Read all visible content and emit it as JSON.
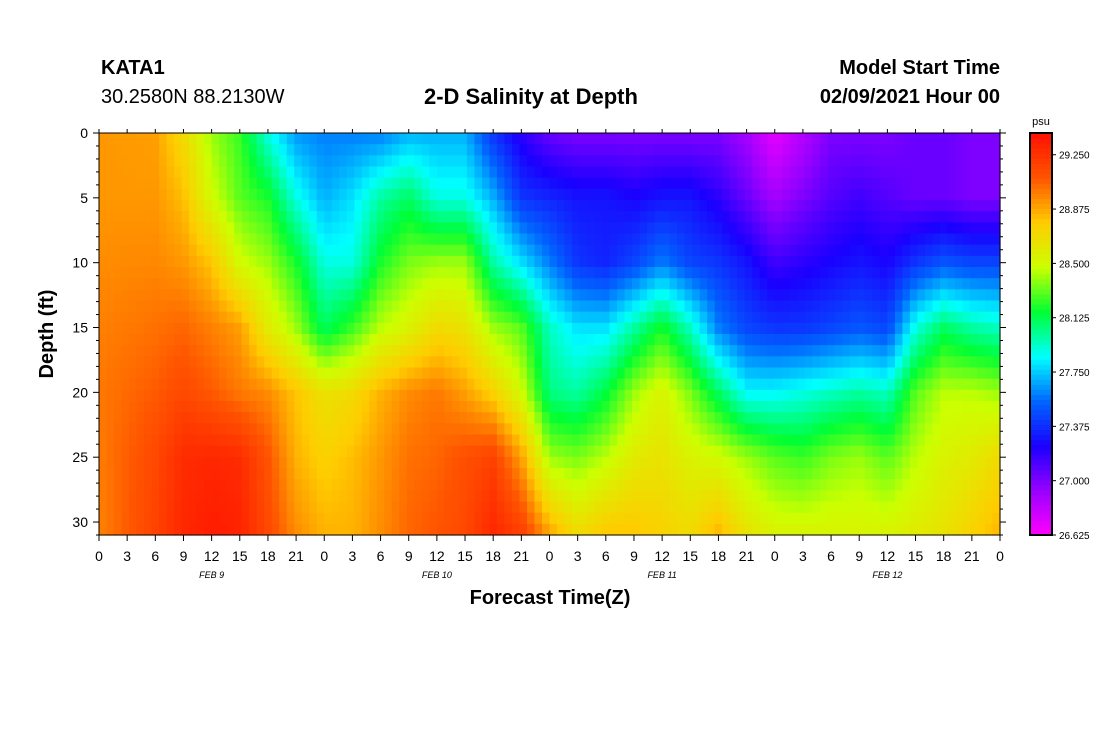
{
  "header": {
    "station_id": "KATA1",
    "location": "30.2580N 88.2130W",
    "title": "2-D Salinity at Depth",
    "start_label": "Model Start Time",
    "start_value": "02/09/2021 Hour 00"
  },
  "chart_data": {
    "type": "heatmap",
    "title": "2-D Salinity at Depth",
    "xlabel": "Forecast Time(Z)",
    "ylabel": "Depth (ft)",
    "x_hours": [
      0,
      3,
      6,
      9,
      12,
      15,
      18,
      21,
      24,
      27,
      30,
      33,
      36,
      39,
      42,
      45,
      48,
      51,
      54,
      57,
      60,
      63,
      66,
      69,
      72,
      75,
      78,
      81,
      84,
      87,
      90,
      93,
      96
    ],
    "x_tick_labels": [
      "0",
      "3",
      "6",
      "9",
      "12",
      "15",
      "18",
      "21",
      "0",
      "3",
      "6",
      "9",
      "12",
      "15",
      "18",
      "21",
      "0",
      "3",
      "6",
      "9",
      "12",
      "15",
      "18",
      "21",
      "0",
      "3",
      "6",
      "9",
      "12",
      "15",
      "18",
      "21",
      "0"
    ],
    "day_labels": [
      {
        "label": "FEB 9",
        "hour": 12
      },
      {
        "label": "FEB 10",
        "hour": 36
      },
      {
        "label": "FEB 11",
        "hour": 60
      },
      {
        "label": "FEB 12",
        "hour": 84
      }
    ],
    "xlim": [
      0,
      96
    ],
    "ylim": [
      0,
      31
    ],
    "y_ticks": [
      0,
      5,
      10,
      15,
      20,
      25,
      30
    ],
    "y_inverted": true,
    "colorbar": {
      "unit": "psu",
      "min": 26.625,
      "max": 29.4,
      "tick_values": [
        29.25,
        28.875,
        28.5,
        28.125,
        27.75,
        27.375,
        27.0,
        26.625
      ],
      "tick_labels": [
        "29.250",
        "28.875",
        "28.500",
        "28.125",
        "27.750",
        "27.375",
        "27.000",
        "26.625"
      ],
      "colors": [
        "#ff00ff",
        "#9900ff",
        "#1a00ff",
        "#0066ff",
        "#00ffff",
        "#00ff33",
        "#ccff00",
        "#ffcc00",
        "#ff5500",
        "#ff1100"
      ]
    },
    "depths_ft": [
      0,
      5,
      10,
      15,
      20,
      25,
      31
    ],
    "times_h": [
      0,
      6,
      9,
      12,
      15,
      18,
      21,
      24,
      27,
      30,
      33,
      36,
      39,
      42,
      45,
      48,
      51,
      54,
      57,
      60,
      63,
      66,
      69,
      72,
      75,
      78,
      81,
      84,
      87,
      90,
      93,
      96
    ],
    "salinity_psu": [
      [
        28.92,
        28.92,
        28.95,
        28.98,
        29.0,
        28.99,
        28.97
      ],
      [
        28.9,
        28.92,
        28.96,
        29.02,
        29.08,
        29.15,
        29.18
      ],
      [
        28.7,
        28.82,
        28.92,
        29.05,
        29.15,
        29.28,
        29.3
      ],
      [
        28.4,
        28.5,
        28.8,
        28.98,
        29.08,
        29.3,
        29.35
      ],
      [
        28.25,
        28.3,
        28.5,
        28.9,
        29.0,
        29.28,
        29.32
      ],
      [
        27.9,
        28.2,
        28.4,
        28.6,
        28.95,
        29.1,
        29.15
      ],
      [
        27.65,
        27.9,
        28.2,
        28.4,
        28.8,
        28.85,
        28.95
      ],
      [
        27.6,
        27.7,
        27.9,
        28.1,
        28.65,
        28.75,
        28.85
      ],
      [
        27.6,
        27.8,
        27.9,
        28.25,
        28.7,
        28.82,
        28.85
      ],
      [
        27.6,
        28.0,
        28.2,
        28.45,
        28.85,
        28.92,
        28.95
      ],
      [
        27.7,
        28.1,
        28.35,
        28.55,
        28.95,
        29.02,
        29.05
      ],
      [
        27.7,
        27.9,
        28.4,
        28.7,
        29.0,
        29.05,
        29.1
      ],
      [
        27.7,
        27.9,
        28.4,
        28.65,
        28.9,
        29.12,
        29.15
      ],
      [
        27.4,
        27.7,
        28.0,
        28.4,
        28.75,
        29.18,
        29.3
      ],
      [
        27.2,
        27.4,
        27.8,
        28.3,
        28.5,
        28.9,
        29.2
      ],
      [
        27.05,
        27.35,
        27.6,
        27.95,
        28.05,
        28.4,
        28.9
      ],
      [
        27.0,
        27.3,
        27.4,
        27.8,
        28.0,
        28.35,
        28.7
      ],
      [
        27.0,
        27.3,
        27.35,
        27.8,
        28.15,
        28.45,
        28.8
      ],
      [
        27.0,
        27.25,
        27.45,
        28.0,
        28.4,
        28.6,
        28.8
      ],
      [
        27.0,
        27.3,
        27.6,
        28.2,
        28.55,
        28.65,
        28.75
      ],
      [
        27.0,
        27.3,
        27.45,
        27.95,
        28.35,
        28.55,
        28.7
      ],
      [
        27.0,
        27.2,
        27.4,
        27.6,
        28.1,
        28.5,
        28.85
      ],
      [
        26.9,
        27.05,
        27.3,
        27.45,
        27.85,
        28.4,
        28.65
      ],
      [
        26.7,
        26.9,
        27.15,
        27.4,
        27.85,
        28.3,
        28.55
      ],
      [
        26.85,
        27.0,
        27.2,
        27.4,
        27.9,
        28.25,
        28.55
      ],
      [
        27.0,
        27.1,
        27.25,
        27.45,
        27.95,
        28.35,
        28.55
      ],
      [
        27.0,
        27.15,
        27.3,
        27.5,
        28.0,
        28.4,
        28.55
      ],
      [
        27.0,
        27.1,
        27.25,
        27.45,
        27.95,
        28.3,
        28.55
      ],
      [
        27.05,
        27.05,
        27.4,
        27.9,
        28.3,
        28.45,
        28.6
      ],
      [
        27.05,
        27.05,
        27.5,
        28.1,
        28.45,
        28.55,
        28.65
      ],
      [
        27.0,
        27.0,
        27.45,
        28.0,
        28.45,
        28.6,
        28.75
      ],
      [
        27.0,
        27.0,
        27.45,
        27.95,
        28.4,
        28.7,
        28.85
      ]
    ]
  }
}
